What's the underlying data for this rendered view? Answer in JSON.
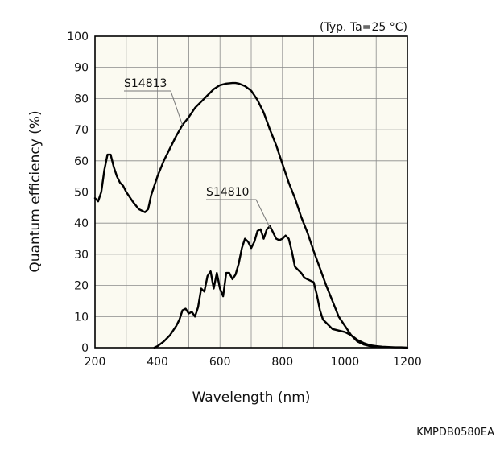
{
  "chart_data": {
    "type": "line",
    "note": "(Typ. Ta=25 °C)",
    "xlabel": "Wavelength (nm)",
    "ylabel": "Quantum efficiency (%)",
    "xlim": [
      200,
      1200
    ],
    "ylim": [
      0,
      100
    ],
    "xticks": [
      200,
      400,
      600,
      800,
      1000,
      1200
    ],
    "yticks": [
      0,
      10,
      20,
      30,
      40,
      50,
      60,
      70,
      80,
      90,
      100
    ],
    "grid": true,
    "series": [
      {
        "name": "S14813",
        "x": [
          200,
          210,
          220,
          230,
          240,
          250,
          260,
          270,
          280,
          290,
          300,
          320,
          340,
          360,
          370,
          380,
          390,
          400,
          420,
          440,
          460,
          480,
          500,
          520,
          540,
          560,
          580,
          600,
          620,
          640,
          650,
          660,
          680,
          700,
          720,
          740,
          760,
          780,
          800,
          820,
          840,
          860,
          880,
          900,
          920,
          940,
          960,
          980,
          1000,
          1020,
          1040,
          1060,
          1080,
          1100
        ],
        "y": [
          48,
          47,
          50,
          57,
          62,
          62,
          58,
          55,
          53,
          52,
          50,
          47,
          44.5,
          43.5,
          44.5,
          49,
          52,
          55,
          60,
          64,
          68,
          71.5,
          74,
          77,
          79,
          81,
          83,
          84.3,
          84.8,
          85,
          85,
          84.8,
          84,
          82.5,
          79.5,
          75.5,
          70,
          65,
          59,
          53,
          48,
          42,
          37,
          31,
          25.5,
          20,
          15,
          10,
          7,
          4,
          2,
          1,
          0.5,
          0.3
        ]
      },
      {
        "name": "S14810",
        "x": [
          390,
          400,
          420,
          440,
          460,
          470,
          480,
          490,
          500,
          510,
          520,
          530,
          540,
          550,
          560,
          570,
          580,
          590,
          600,
          610,
          620,
          630,
          640,
          650,
          660,
          670,
          680,
          690,
          700,
          710,
          720,
          730,
          740,
          750,
          760,
          770,
          780,
          790,
          800,
          810,
          820,
          830,
          840,
          850,
          860,
          870,
          880,
          890,
          900,
          910,
          920,
          930,
          940,
          960,
          980,
          1000,
          1020,
          1040,
          1060,
          1080,
          1100,
          1120,
          1140,
          1160,
          1180,
          1200
        ],
        "y": [
          0,
          0.5,
          2,
          4,
          7,
          9,
          12,
          12.5,
          11,
          11.5,
          10,
          13,
          19,
          18,
          23,
          24.5,
          19,
          24,
          19,
          16.5,
          24,
          24,
          22,
          23.5,
          27,
          32,
          35,
          34,
          32,
          34,
          37.5,
          38,
          35,
          38,
          39,
          37,
          35,
          34.5,
          35,
          36,
          35,
          31,
          26,
          25,
          24,
          22.5,
          22,
          21.5,
          21,
          17,
          12,
          9,
          8,
          6,
          5.5,
          5,
          4,
          2.5,
          1.5,
          0.8,
          0.5,
          0.3,
          0.2,
          0.1,
          0.1,
          0
        ]
      }
    ],
    "annotations": [
      "S14813",
      "S14810"
    ]
  },
  "footer_code": "KMPDB0580EA"
}
